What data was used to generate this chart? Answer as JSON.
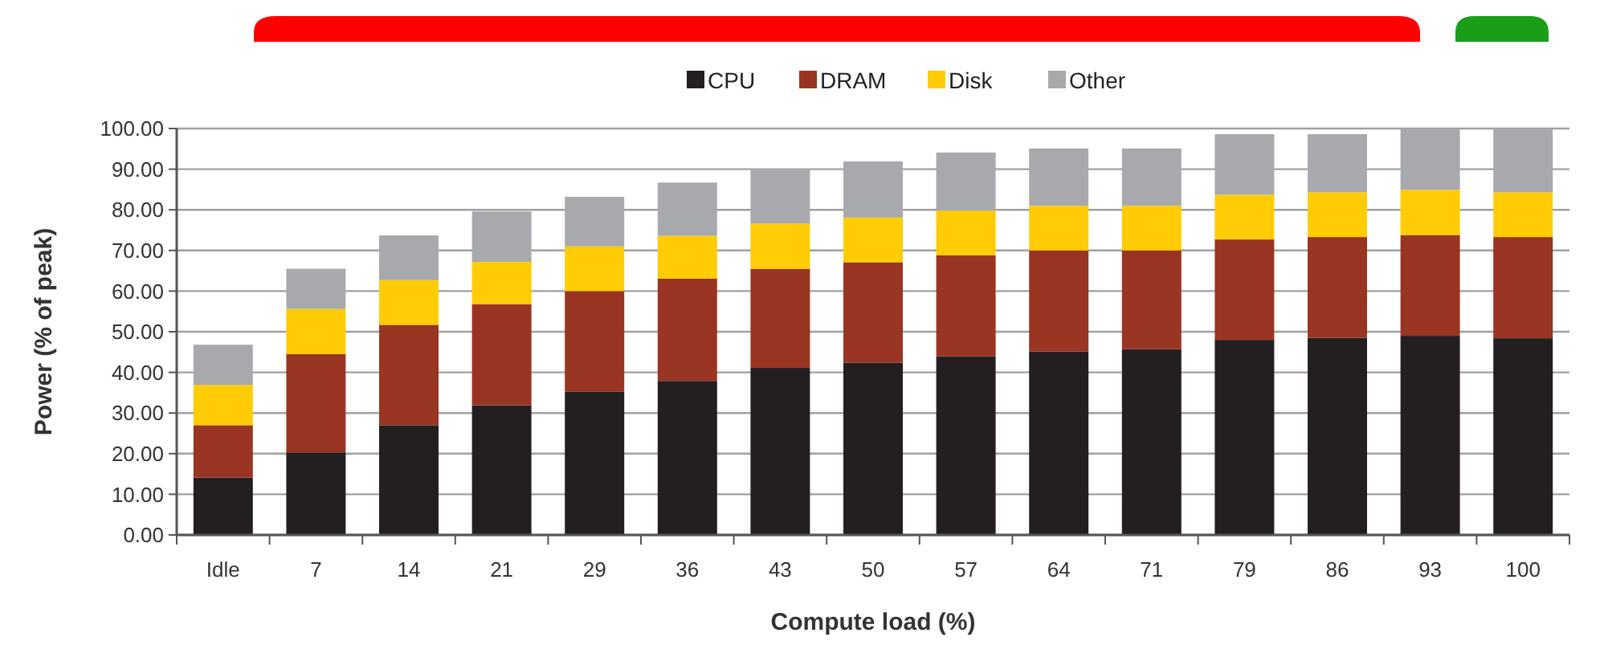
{
  "chart_data": {
    "type": "bar",
    "stacked": true,
    "xlabel": "Compute load (%)",
    "ylabel": "Power (% of peak)",
    "categories": [
      "Idle",
      "7",
      "14",
      "21",
      "29",
      "36",
      "43",
      "50",
      "57",
      "64",
      "71",
      "79",
      "86",
      "93",
      "100"
    ],
    "series": [
      {
        "name": "CPU",
        "color": "#231f20",
        "values": [
          14.1,
          20.3,
          27.0,
          31.9,
          35.3,
          37.9,
          41.1,
          42.4,
          44.0,
          45.1,
          45.7,
          48.0,
          48.5,
          49.0,
          48.4
        ]
      },
      {
        "name": "DRAM",
        "color": "#993522",
        "values": [
          12.9,
          24.2,
          24.7,
          24.9,
          24.7,
          25.2,
          24.4,
          24.7,
          24.8,
          24.9,
          24.3,
          24.7,
          24.8,
          24.8,
          24.9
        ]
      },
      {
        "name": "Disk",
        "color": "#ffcc05",
        "values": [
          9.9,
          11.1,
          11.0,
          10.4,
          11.0,
          10.5,
          11.1,
          11.0,
          11.0,
          11.0,
          11.0,
          11.0,
          11.0,
          11.1,
          11.0
        ]
      },
      {
        "name": "Other",
        "color": "#a7a9ac",
        "values": [
          9.9,
          9.9,
          11.0,
          12.4,
          12.2,
          13.1,
          13.5,
          13.8,
          14.3,
          14.1,
          14.1,
          14.9,
          14.3,
          15.1,
          15.7
        ]
      }
    ],
    "ylim": [
      0,
      100
    ],
    "yticks": [
      {
        "value": 0,
        "label": "0.00"
      },
      {
        "value": 10,
        "label": "10.00"
      },
      {
        "value": 20,
        "label": "20.00"
      },
      {
        "value": 30,
        "label": "30.00"
      },
      {
        "value": 40,
        "label": "40.00"
      },
      {
        "value": 50,
        "label": "50.00"
      },
      {
        "value": 60,
        "label": "60.00"
      },
      {
        "value": 70,
        "label": "70.00"
      },
      {
        "value": 80,
        "label": "80.00"
      },
      {
        "value": 90,
        "label": "90.00"
      },
      {
        "value": 100,
        "label": "100.00"
      }
    ],
    "grid": "y",
    "legend": "top"
  }
}
